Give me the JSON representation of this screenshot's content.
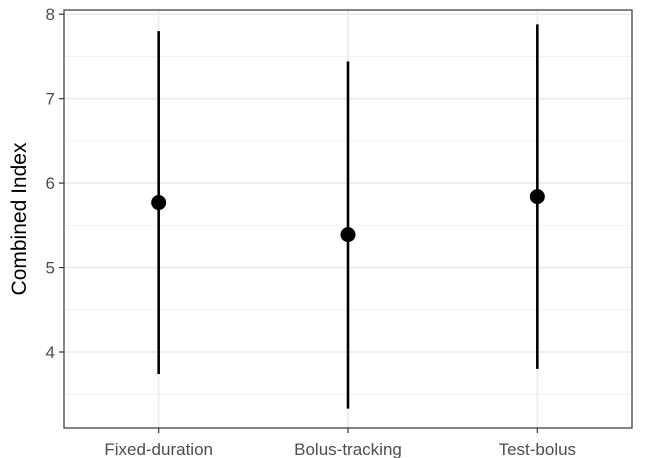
{
  "chart_data": {
    "type": "scatter",
    "subtype": "point-range",
    "title": "",
    "xlabel": "",
    "ylabel": "Combined Index",
    "categories": [
      "Fixed-duration",
      "Bolus-tracking",
      "Test-bolus"
    ],
    "values": [
      5.77,
      5.39,
      5.84
    ],
    "lower": [
      3.74,
      3.33,
      3.8
    ],
    "upper": [
      7.8,
      7.44,
      7.88
    ],
    "ylim": [
      3.1,
      8.05
    ],
    "yticks": [
      4,
      5,
      6,
      7,
      8
    ],
    "grid": true,
    "legend": "none",
    "colors": {
      "panel_background": "#ffffff",
      "grid_major": "#ebebeb",
      "grid_minor": "#f2f2f2",
      "panel_border": "#333333",
      "point": "#000000",
      "range_line": "#000000",
      "tick_text": "#4d4d4d"
    }
  }
}
